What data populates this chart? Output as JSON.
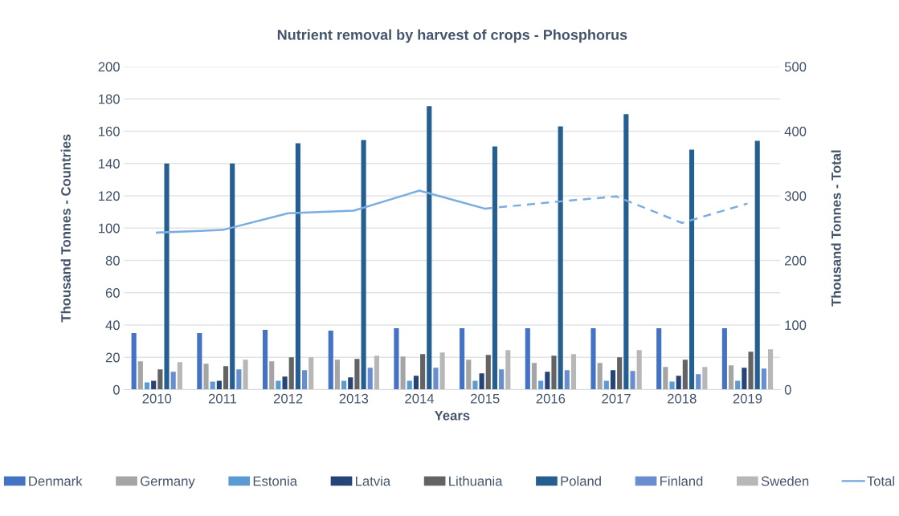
{
  "chart_data": {
    "type": "bar",
    "title": "Nutrient removal by harvest of crops - Phosphorus",
    "xlabel": "Years",
    "ylabel": "Thousand Tonnes - Countries",
    "y2label": "Thousand Tonnes - Total",
    "categories": [
      "2010",
      "2011",
      "2012",
      "2013",
      "2014",
      "2015",
      "2016",
      "2017",
      "2018",
      "2019"
    ],
    "series": [
      {
        "name": "Denmark",
        "color": "#4472c4",
        "values": [
          35,
          35,
          37,
          36.5,
          38,
          38,
          38,
          38,
          38,
          38
        ]
      },
      {
        "name": "Germany",
        "color": "#a5a5a5",
        "values": [
          17.5,
          16,
          17.5,
          18.5,
          20.5,
          18.5,
          16.5,
          16.5,
          14,
          15
        ]
      },
      {
        "name": "Estonia",
        "color": "#5b9bd5",
        "values": [
          4.5,
          5,
          5.5,
          5.5,
          5.5,
          5.5,
          5.5,
          5.5,
          5,
          5.5
        ]
      },
      {
        "name": "Latvia",
        "color": "#264478",
        "values": [
          5.5,
          5.5,
          8,
          7.5,
          8.5,
          10,
          11,
          12,
          8.5,
          13.5
        ]
      },
      {
        "name": "Lithuania",
        "color": "#636363",
        "values": [
          12.5,
          14.5,
          20,
          19,
          22,
          21.5,
          21,
          20,
          18.5,
          23.5
        ]
      },
      {
        "name": "Poland",
        "color": "#255e91",
        "values": [
          140,
          140,
          152.5,
          154.5,
          175.5,
          150.5,
          163,
          170.5,
          148.5,
          154
        ]
      },
      {
        "name": "Finland",
        "color": "#698ed0",
        "values": [
          11,
          12.5,
          12,
          13.5,
          13.5,
          12.5,
          12,
          11.5,
          9.5,
          13
        ]
      },
      {
        "name": "Sweden",
        "color": "#b7b7b7",
        "values": [
          17,
          18.5,
          20,
          21,
          23,
          24.5,
          22,
          24.5,
          14,
          25
        ]
      },
      {
        "name": "Total",
        "type": "line",
        "axis": "y2",
        "color": "#7aaee0",
        "line_style": "solid",
        "values": [
          243,
          247,
          273,
          277,
          308,
          280,
          null,
          null,
          null,
          null
        ]
      },
      {
        "type": "line",
        "axis": "y2",
        "color": "#7aaee0",
        "line_style": "dashed",
        "values": [
          null,
          null,
          null,
          null,
          null,
          280,
          290,
          299,
          258,
          288
        ]
      }
    ],
    "ylim": [
      0,
      200
    ],
    "yticks": [
      0,
      20,
      40,
      60,
      80,
      100,
      120,
      140,
      160,
      180,
      200
    ],
    "y2lim": [
      0,
      500
    ],
    "y2ticks": [
      0,
      100,
      200,
      300,
      400,
      500
    ],
    "grid": "y",
    "legend": "bottom"
  }
}
